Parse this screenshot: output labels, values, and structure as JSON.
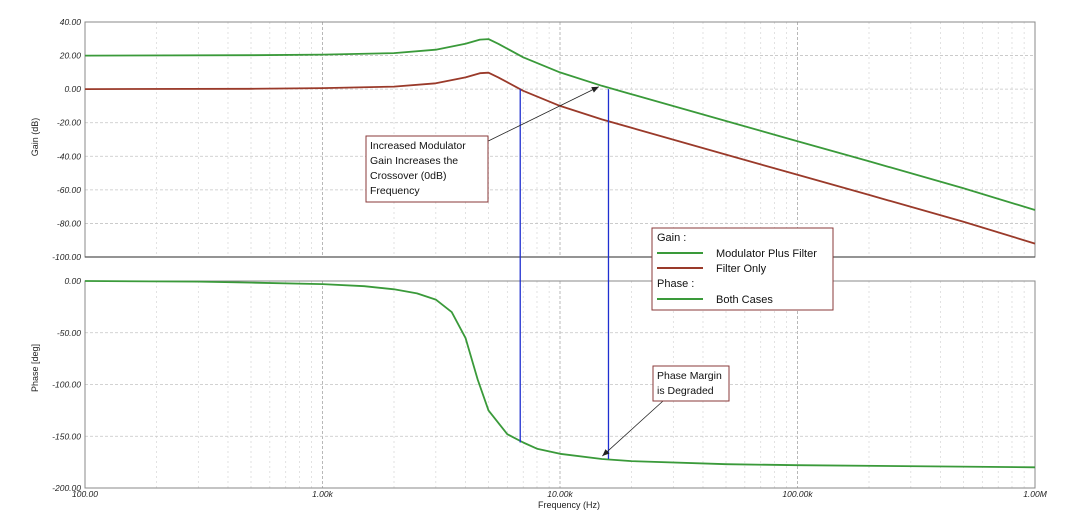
{
  "chart_data": {
    "type": "line",
    "xscale": "log",
    "xlim": [
      100,
      1000000
    ],
    "xlabel": "Frequency (Hz)",
    "x_tick_labels": [
      "100.00",
      "1.00k",
      "10.00k",
      "100.00k",
      "1.00M"
    ],
    "x_tick_values": [
      100,
      1000,
      10000,
      100000,
      1000000
    ],
    "grid": true,
    "panels": [
      {
        "id": "gain",
        "ylabel": "Gain (dB)",
        "ylim": [
          -100,
          40
        ],
        "y_tick_labels": [
          "40.00",
          "20.00",
          "0.00",
          "-20.00",
          "-40.00",
          "-60.00",
          "-80.00",
          "-100.00"
        ],
        "y_tick_values": [
          40,
          20,
          0,
          -20,
          -40,
          -60,
          -80,
          -100
        ],
        "series": [
          {
            "name": "Modulator Plus Filter",
            "color": "#3a9a3a",
            "points": [
              [
                100,
                20
              ],
              [
                500,
                20.2
              ],
              [
                1000,
                20.6
              ],
              [
                2000,
                21.5
              ],
              [
                3000,
                23.5
              ],
              [
                4000,
                27
              ],
              [
                4600,
                29.5
              ],
              [
                5000,
                29.8
              ],
              [
                5500,
                27
              ],
              [
                7000,
                19
              ],
              [
                10000,
                10
              ],
              [
                15000,
                2
              ],
              [
                20000,
                -3
              ],
              [
                50000,
                -19
              ],
              [
                100000,
                -31
              ],
              [
                200000,
                -43
              ],
              [
                500000,
                -59
              ],
              [
                1000000,
                -72
              ]
            ]
          },
          {
            "name": "Filter Only",
            "color": "#9a3a2a",
            "points": [
              [
                100,
                0
              ],
              [
                500,
                0.2
              ],
              [
                1000,
                0.6
              ],
              [
                2000,
                1.5
              ],
              [
                3000,
                3.5
              ],
              [
                4000,
                7
              ],
              [
                4600,
                9.5
              ],
              [
                5000,
                9.8
              ],
              [
                5500,
                7
              ],
              [
                7000,
                -1
              ],
              [
                10000,
                -10
              ],
              [
                15000,
                -18
              ],
              [
                20000,
                -23
              ],
              [
                50000,
                -39
              ],
              [
                100000,
                -51
              ],
              [
                200000,
                -63
              ],
              [
                500000,
                -79
              ],
              [
                1000000,
                -92
              ]
            ]
          }
        ]
      },
      {
        "id": "phase",
        "ylabel": "Phase [deg]",
        "ylim": [
          -200,
          0
        ],
        "y_tick_labels": [
          "0.00",
          "-50.00",
          "-100.00",
          "-150.00",
          "-200.00"
        ],
        "y_tick_values": [
          0,
          -50,
          -100,
          -150,
          -200
        ],
        "series": [
          {
            "name": "Both Cases",
            "color": "#3a9a3a",
            "points": [
              [
                100,
                0
              ],
              [
                300,
                -0.6
              ],
              [
                500,
                -1.5
              ],
              [
                1000,
                -3
              ],
              [
                1500,
                -5
              ],
              [
                2000,
                -8
              ],
              [
                2500,
                -12
              ],
              [
                3000,
                -18
              ],
              [
                3500,
                -30
              ],
              [
                4000,
                -55
              ],
              [
                4500,
                -95
              ],
              [
                5000,
                -125
              ],
              [
                6000,
                -148
              ],
              [
                7000,
                -156
              ],
              [
                8000,
                -162
              ],
              [
                10000,
                -167
              ],
              [
                15000,
                -172
              ],
              [
                20000,
                -174
              ],
              [
                50000,
                -177
              ],
              [
                100000,
                -178
              ],
              [
                1000000,
                -180
              ]
            ]
          }
        ]
      }
    ],
    "markers": [
      {
        "x": 6800,
        "gain": 0,
        "phase": -156,
        "color": "#1f2fd0"
      },
      {
        "x": 16000,
        "gain": 0,
        "phase": -172,
        "color": "#1f2fd0"
      }
    ],
    "legend": {
      "placement": "middle-right",
      "groups": [
        {
          "title": "Gain :",
          "entries": [
            {
              "label": "Modulator Plus Filter",
              "color": "#3a9a3a"
            },
            {
              "label": "Filter Only",
              "color": "#9a3a2a"
            }
          ]
        },
        {
          "title": "Phase :",
          "entries": [
            {
              "label": "Both Cases",
              "color": "#3a9a3a"
            }
          ]
        }
      ]
    },
    "annotations": [
      {
        "text_lines": [
          "Increased Modulator",
          "Gain Increases the",
          "Crossover (0dB)",
          "Frequency"
        ],
        "arrow_to": {
          "panel": "gain",
          "x": 15000,
          "y": 2
        }
      },
      {
        "text_lines": [
          "Phase Margin",
          "is Degraded"
        ],
        "arrow_to": {
          "panel": "phase",
          "x": 14500,
          "y": -172
        }
      }
    ]
  }
}
